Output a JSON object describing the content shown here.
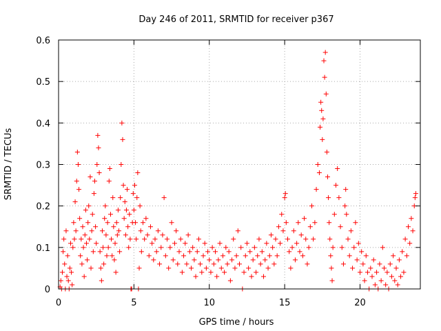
{
  "chart_data": {
    "type": "scatter",
    "title": "Day 246 of 2011, SRMTID for receiver p367",
    "xlabel": "GPS time / hours",
    "ylabel": "SRMTID / TECUs",
    "xlim": [
      0,
      24
    ],
    "ylim": [
      0,
      0.6
    ],
    "xticks": [
      0,
      5,
      10,
      15,
      20
    ],
    "xtick_labels": [
      "0",
      "5",
      "10",
      "15",
      "20"
    ],
    "yticks": [
      0,
      0.1,
      0.2,
      0.3,
      0.4,
      0.5,
      0.6
    ],
    "ytick_labels": [
      "0",
      "0.1",
      "0.2",
      "0.3",
      "0.4",
      "0.5",
      "0.6"
    ],
    "grid": true,
    "marker": "plus",
    "color": "#ff0000",
    "series": [
      {
        "name": "SRMTID",
        "points": [
          [
            0.1,
            0.005
          ],
          [
            0.15,
            0.02
          ],
          [
            0.2,
            0.0
          ],
          [
            0.25,
            0.04
          ],
          [
            0.3,
            0.09
          ],
          [
            0.35,
            0.12
          ],
          [
            0.4,
            0.06
          ],
          [
            0.45,
            0.0
          ],
          [
            0.5,
            0.14
          ],
          [
            0.55,
            0.03
          ],
          [
            0.6,
            0.08
          ],
          [
            0.65,
            0.02
          ],
          [
            0.7,
            0.0
          ],
          [
            0.75,
            0.05
          ],
          [
            0.8,
            0.11
          ],
          [
            0.85,
            0.04
          ],
          [
            0.9,
            0.01
          ],
          [
            0.95,
            0.1
          ],
          [
            1.0,
            0.16
          ],
          [
            1.05,
            0.12
          ],
          [
            1.1,
            0.21
          ],
          [
            1.15,
            0.14
          ],
          [
            1.2,
            0.26
          ],
          [
            1.25,
            0.33
          ],
          [
            1.3,
            0.3
          ],
          [
            1.35,
            0.24
          ],
          [
            1.4,
            0.17
          ],
          [
            1.45,
            0.08
          ],
          [
            1.5,
            0.12
          ],
          [
            1.55,
            0.06
          ],
          [
            1.6,
            0.15
          ],
          [
            1.65,
            0.1
          ],
          [
            1.7,
            0.03
          ],
          [
            1.75,
            0.13
          ],
          [
            1.8,
            0.19
          ],
          [
            1.85,
            0.11
          ],
          [
            1.9,
            0.07
          ],
          [
            1.95,
            0.16
          ],
          [
            2.0,
            0.2
          ],
          [
            2.05,
            0.12
          ],
          [
            2.1,
            0.27
          ],
          [
            2.15,
            0.05
          ],
          [
            2.2,
            0.14
          ],
          [
            2.25,
            0.18
          ],
          [
            2.3,
            0.09
          ],
          [
            2.35,
            0.23
          ],
          [
            2.4,
            0.26
          ],
          [
            2.45,
            0.15
          ],
          [
            2.5,
            0.11
          ],
          [
            2.55,
            0.3
          ],
          [
            2.6,
            0.37
          ],
          [
            2.65,
            0.34
          ],
          [
            2.7,
            0.28
          ],
          [
            2.75,
            0.09
          ],
          [
            2.8,
            0.05
          ],
          [
            2.85,
            0.02
          ],
          [
            2.9,
            0.14
          ],
          [
            2.95,
            0.1
          ],
          [
            3.0,
            0.06
          ],
          [
            3.05,
            0.17
          ],
          [
            3.1,
            0.2
          ],
          [
            3.15,
            0.13
          ],
          [
            3.2,
            0.08
          ],
          [
            3.25,
            0.16
          ],
          [
            3.3,
            0.1
          ],
          [
            3.35,
            0.26
          ],
          [
            3.4,
            0.29
          ],
          [
            3.45,
            0.18
          ],
          [
            3.5,
            0.12
          ],
          [
            3.55,
            0.08
          ],
          [
            3.6,
            0.22
          ],
          [
            3.65,
            0.15
          ],
          [
            3.7,
            0.07
          ],
          [
            3.75,
            0.11
          ],
          [
            3.8,
            0.04
          ],
          [
            3.85,
            0.16
          ],
          [
            3.9,
            0.13
          ],
          [
            3.95,
            0.19
          ],
          [
            4.0,
            0.14
          ],
          [
            4.05,
            0.09
          ],
          [
            4.1,
            0.22
          ],
          [
            4.15,
            0.3
          ],
          [
            4.2,
            0.4
          ],
          [
            4.25,
            0.36
          ],
          [
            4.3,
            0.25
          ],
          [
            4.35,
            0.17
          ],
          [
            4.4,
            0.21
          ],
          [
            4.45,
            0.13
          ],
          [
            4.5,
            0.19
          ],
          [
            4.55,
            0.24
          ],
          [
            4.6,
            0.15
          ],
          [
            4.65,
            0.1
          ],
          [
            4.7,
            0.18
          ],
          [
            4.75,
            0.12
          ],
          [
            4.8,
            0.0
          ],
          [
            4.85,
            0.0
          ],
          [
            4.9,
            0.16
          ],
          [
            4.95,
            0.23
          ],
          [
            5.0,
            0.19
          ],
          [
            5.05,
            0.25
          ],
          [
            5.1,
            0.16
          ],
          [
            5.15,
            0.12
          ],
          [
            5.2,
            0.22
          ],
          [
            5.25,
            0.28
          ],
          [
            5.3,
            0.0
          ],
          [
            5.35,
            0.05
          ],
          [
            5.4,
            0.2
          ],
          [
            5.45,
            0.14
          ],
          [
            5.5,
            0.09
          ],
          [
            5.6,
            0.16
          ],
          [
            5.7,
            0.12
          ],
          [
            5.8,
            0.17
          ],
          [
            5.9,
            0.13
          ],
          [
            6.0,
            0.08
          ],
          [
            6.1,
            0.15
          ],
          [
            6.2,
            0.11
          ],
          [
            6.3,
            0.07
          ],
          [
            6.4,
            0.12
          ],
          [
            6.5,
            0.09
          ],
          [
            6.6,
            0.14
          ],
          [
            6.7,
            0.06
          ],
          [
            6.8,
            0.1
          ],
          [
            6.9,
            0.13
          ],
          [
            7.0,
            0.22
          ],
          [
            7.1,
            0.08
          ],
          [
            7.2,
            0.12
          ],
          [
            7.3,
            0.05
          ],
          [
            7.4,
            0.1
          ],
          [
            7.5,
            0.16
          ],
          [
            7.6,
            0.07
          ],
          [
            7.7,
            0.11
          ],
          [
            7.8,
            0.14
          ],
          [
            7.9,
            0.06
          ],
          [
            8.0,
            0.09
          ],
          [
            8.1,
            0.12
          ],
          [
            8.2,
            0.04
          ],
          [
            8.3,
            0.08
          ],
          [
            8.4,
            0.11
          ],
          [
            8.5,
            0.06
          ],
          [
            8.6,
            0.13
          ],
          [
            8.7,
            0.09
          ],
          [
            8.8,
            0.05
          ],
          [
            8.9,
            0.1
          ],
          [
            9.0,
            0.07
          ],
          [
            9.1,
            0.03
          ],
          [
            9.2,
            0.09
          ],
          [
            9.3,
            0.12
          ],
          [
            9.4,
            0.06
          ],
          [
            9.5,
            0.04
          ],
          [
            9.6,
            0.08
          ],
          [
            9.7,
            0.11
          ],
          [
            9.8,
            0.05
          ],
          [
            9.9,
            0.09
          ],
          [
            10.0,
            0.07
          ],
          [
            10.1,
            0.04
          ],
          [
            10.2,
            0.1
          ],
          [
            10.3,
            0.06
          ],
          [
            10.4,
            0.09
          ],
          [
            10.5,
            0.03
          ],
          [
            10.6,
            0.07
          ],
          [
            10.7,
            0.11
          ],
          [
            10.8,
            0.05
          ],
          [
            10.9,
            0.08
          ],
          [
            11.0,
            0.04
          ],
          [
            11.1,
            0.1
          ],
          [
            11.2,
            0.06
          ],
          [
            11.3,
            0.09
          ],
          [
            11.4,
            0.02
          ],
          [
            11.5,
            0.07
          ],
          [
            11.6,
            0.12
          ],
          [
            11.7,
            0.05
          ],
          [
            11.8,
            0.08
          ],
          [
            11.9,
            0.14
          ],
          [
            12.0,
            0.06
          ],
          [
            12.1,
            0.1
          ],
          [
            12.2,
            0.0
          ],
          [
            12.3,
            0.04
          ],
          [
            12.4,
            0.08
          ],
          [
            12.5,
            0.11
          ],
          [
            12.6,
            0.05
          ],
          [
            12.7,
            0.09
          ],
          [
            12.8,
            0.03
          ],
          [
            12.9,
            0.07
          ],
          [
            13.0,
            0.1
          ],
          [
            13.1,
            0.04
          ],
          [
            13.2,
            0.08
          ],
          [
            13.3,
            0.12
          ],
          [
            13.4,
            0.06
          ],
          [
            13.5,
            0.09
          ],
          [
            13.6,
            0.03
          ],
          [
            13.7,
            0.07
          ],
          [
            13.8,
            0.11
          ],
          [
            13.9,
            0.05
          ],
          [
            14.0,
            0.08
          ],
          [
            14.1,
            0.13
          ],
          [
            14.2,
            0.1
          ],
          [
            14.3,
            0.06
          ],
          [
            14.4,
            0.12
          ],
          [
            14.5,
            0.08
          ],
          [
            14.6,
            0.15
          ],
          [
            14.7,
            0.11
          ],
          [
            14.8,
            0.18
          ],
          [
            14.9,
            0.14
          ],
          [
            15.0,
            0.22
          ],
          [
            15.05,
            0.23
          ],
          [
            15.1,
            0.16
          ],
          [
            15.2,
            0.12
          ],
          [
            15.3,
            0.09
          ],
          [
            15.4,
            0.05
          ],
          [
            15.5,
            0.1
          ],
          [
            15.6,
            0.14
          ],
          [
            15.7,
            0.07
          ],
          [
            15.8,
            0.11
          ],
          [
            15.9,
            0.16
          ],
          [
            16.0,
            0.09
          ],
          [
            16.1,
            0.13
          ],
          [
            16.2,
            0.08
          ],
          [
            16.3,
            0.17
          ],
          [
            16.4,
            0.12
          ],
          [
            16.5,
            0.06
          ],
          [
            16.6,
            0.1
          ],
          [
            16.7,
            0.15
          ],
          [
            16.8,
            0.2
          ],
          [
            16.9,
            0.12
          ],
          [
            17.0,
            0.16
          ],
          [
            17.1,
            0.24
          ],
          [
            17.2,
            0.3
          ],
          [
            17.3,
            0.28
          ],
          [
            17.35,
            0.39
          ],
          [
            17.4,
            0.45
          ],
          [
            17.45,
            0.43
          ],
          [
            17.5,
            0.36
          ],
          [
            17.55,
            0.41
          ],
          [
            17.6,
            0.55
          ],
          [
            17.65,
            0.51
          ],
          [
            17.7,
            0.57
          ],
          [
            17.75,
            0.47
          ],
          [
            17.8,
            0.33
          ],
          [
            17.85,
            0.27
          ],
          [
            17.9,
            0.22
          ],
          [
            17.95,
            0.16
          ],
          [
            18.0,
            0.12
          ],
          [
            18.05,
            0.08
          ],
          [
            18.1,
            0.05
          ],
          [
            18.15,
            0.02
          ],
          [
            18.2,
            0.1
          ],
          [
            18.3,
            0.18
          ],
          [
            18.4,
            0.25
          ],
          [
            18.5,
            0.29
          ],
          [
            18.6,
            0.22
          ],
          [
            18.7,
            0.15
          ],
          [
            18.8,
            0.1
          ],
          [
            18.9,
            0.06
          ],
          [
            19.0,
            0.2
          ],
          [
            19.05,
            0.24
          ],
          [
            19.1,
            0.18
          ],
          [
            19.2,
            0.12
          ],
          [
            19.3,
            0.08
          ],
          [
            19.4,
            0.14
          ],
          [
            19.5,
            0.05
          ],
          [
            19.6,
            0.1
          ],
          [
            19.7,
            0.16
          ],
          [
            19.8,
            0.07
          ],
          [
            19.9,
            0.11
          ],
          [
            20.0,
            0.04
          ],
          [
            20.1,
            0.09
          ],
          [
            20.2,
            0.06
          ],
          [
            20.3,
            0.02
          ],
          [
            20.4,
            0.08
          ],
          [
            20.5,
            0.04
          ],
          [
            20.6,
            0.0
          ],
          [
            20.7,
            0.05
          ],
          [
            20.8,
            0.03
          ],
          [
            20.9,
            0.07
          ],
          [
            21.0,
            0.01
          ],
          [
            21.1,
            0.04
          ],
          [
            21.2,
            0.0
          ],
          [
            21.3,
            0.06
          ],
          [
            21.4,
            0.02
          ],
          [
            21.5,
            0.1
          ],
          [
            21.6,
            0.05
          ],
          [
            21.7,
            0.01
          ],
          [
            21.8,
            0.04
          ],
          [
            21.9,
            0.0
          ],
          [
            22.0,
            0.06
          ],
          [
            22.1,
            0.03
          ],
          [
            22.2,
            0.08
          ],
          [
            22.3,
            0.02
          ],
          [
            22.4,
            0.05
          ],
          [
            22.5,
            0.01
          ],
          [
            22.6,
            0.07
          ],
          [
            22.7,
            0.03
          ],
          [
            22.8,
            0.09
          ],
          [
            22.9,
            0.04
          ],
          [
            23.0,
            0.12
          ],
          [
            23.1,
            0.08
          ],
          [
            23.2,
            0.15
          ],
          [
            23.3,
            0.11
          ],
          [
            23.4,
            0.17
          ],
          [
            23.5,
            0.14
          ],
          [
            23.6,
            0.2
          ],
          [
            23.65,
            0.22
          ],
          [
            23.7,
            0.23
          ]
        ]
      }
    ]
  }
}
